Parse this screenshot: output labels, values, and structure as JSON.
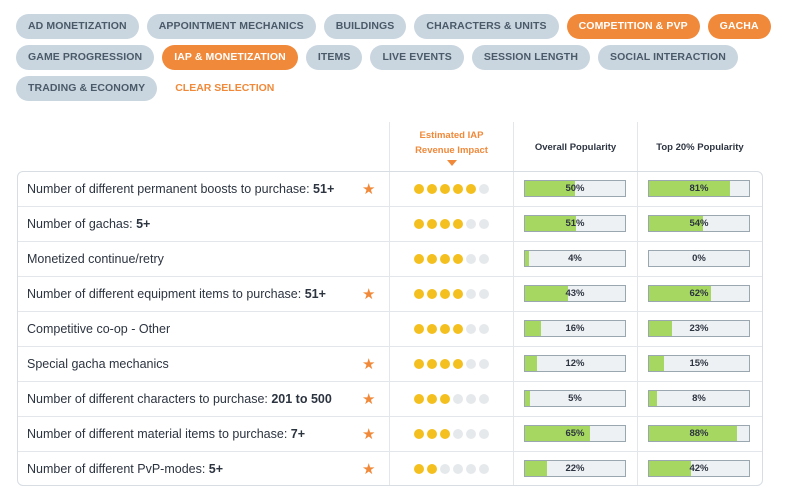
{
  "filters": {
    "rows": [
      [
        {
          "label": "Ad Monetization",
          "active": false
        },
        {
          "label": "Appointment Mechanics",
          "active": false
        },
        {
          "label": "Buildings",
          "active": false
        },
        {
          "label": "Characters & Units",
          "active": false
        },
        {
          "label": "Competition & PvP",
          "active": true
        },
        {
          "label": "Gacha",
          "active": true
        }
      ],
      [
        {
          "label": "Game Progression",
          "active": false
        },
        {
          "label": "IAP & Monetization",
          "active": true
        },
        {
          "label": "Items",
          "active": false
        },
        {
          "label": "Live Events",
          "active": false
        },
        {
          "label": "Session Length",
          "active": false
        },
        {
          "label": "Social Interaction",
          "active": false
        }
      ],
      [
        {
          "label": "Trading & Economy",
          "active": false
        }
      ]
    ],
    "clear_label": "Clear selection"
  },
  "columns": {
    "impact_line1": "Estimated IAP",
    "impact_line2": "Revenue Impact",
    "overall": "Overall Popularity",
    "top20": "Top 20% Popularity"
  },
  "colors": {
    "accent": "#f0893a",
    "chip": "#c9d5df",
    "dot_on": "#f4c01f",
    "bar_fill": "#a6d861"
  },
  "rows": [
    {
      "text": "Number of different permanent boosts to purchase: ",
      "bold": "51+",
      "starred": true,
      "impact": 5,
      "overall": 50,
      "overall_label": "50%",
      "top20": 81,
      "top20_label": "81%"
    },
    {
      "text": "Number of gachas: ",
      "bold": "5+",
      "starred": false,
      "impact": 4,
      "overall": 51,
      "overall_label": "51%",
      "top20": 54,
      "top20_label": "54%"
    },
    {
      "text": "Monetized continue/retry",
      "bold": "",
      "starred": false,
      "impact": 4,
      "overall": 4,
      "overall_label": "4%",
      "top20": 0,
      "top20_label": "0%"
    },
    {
      "text": "Number of different equipment items to purchase: ",
      "bold": "51+",
      "starred": true,
      "impact": 4,
      "overall": 43,
      "overall_label": "43%",
      "top20": 62,
      "top20_label": "62%"
    },
    {
      "text": "Competitive co-op - Other",
      "bold": "",
      "starred": false,
      "impact": 4,
      "overall": 16,
      "overall_label": "16%",
      "top20": 23,
      "top20_label": "23%"
    },
    {
      "text": "Special gacha mechanics",
      "bold": "",
      "starred": true,
      "impact": 4,
      "overall": 12,
      "overall_label": "12%",
      "top20": 15,
      "top20_label": "15%"
    },
    {
      "text": "Number of different characters to purchase: ",
      "bold": "201 to 500",
      "starred": true,
      "impact": 3,
      "overall": 5,
      "overall_label": "5%",
      "top20": 8,
      "top20_label": "8%"
    },
    {
      "text": "Number of different material items to purchase: ",
      "bold": "7+",
      "starred": true,
      "impact": 3,
      "overall": 65,
      "overall_label": "65%",
      "top20": 88,
      "top20_label": "88%"
    },
    {
      "text": "Number of different PvP-modes: ",
      "bold": "5+",
      "starred": true,
      "impact": 2,
      "overall": 22,
      "overall_label": "22%",
      "top20": 42,
      "top20_label": "42%"
    }
  ]
}
